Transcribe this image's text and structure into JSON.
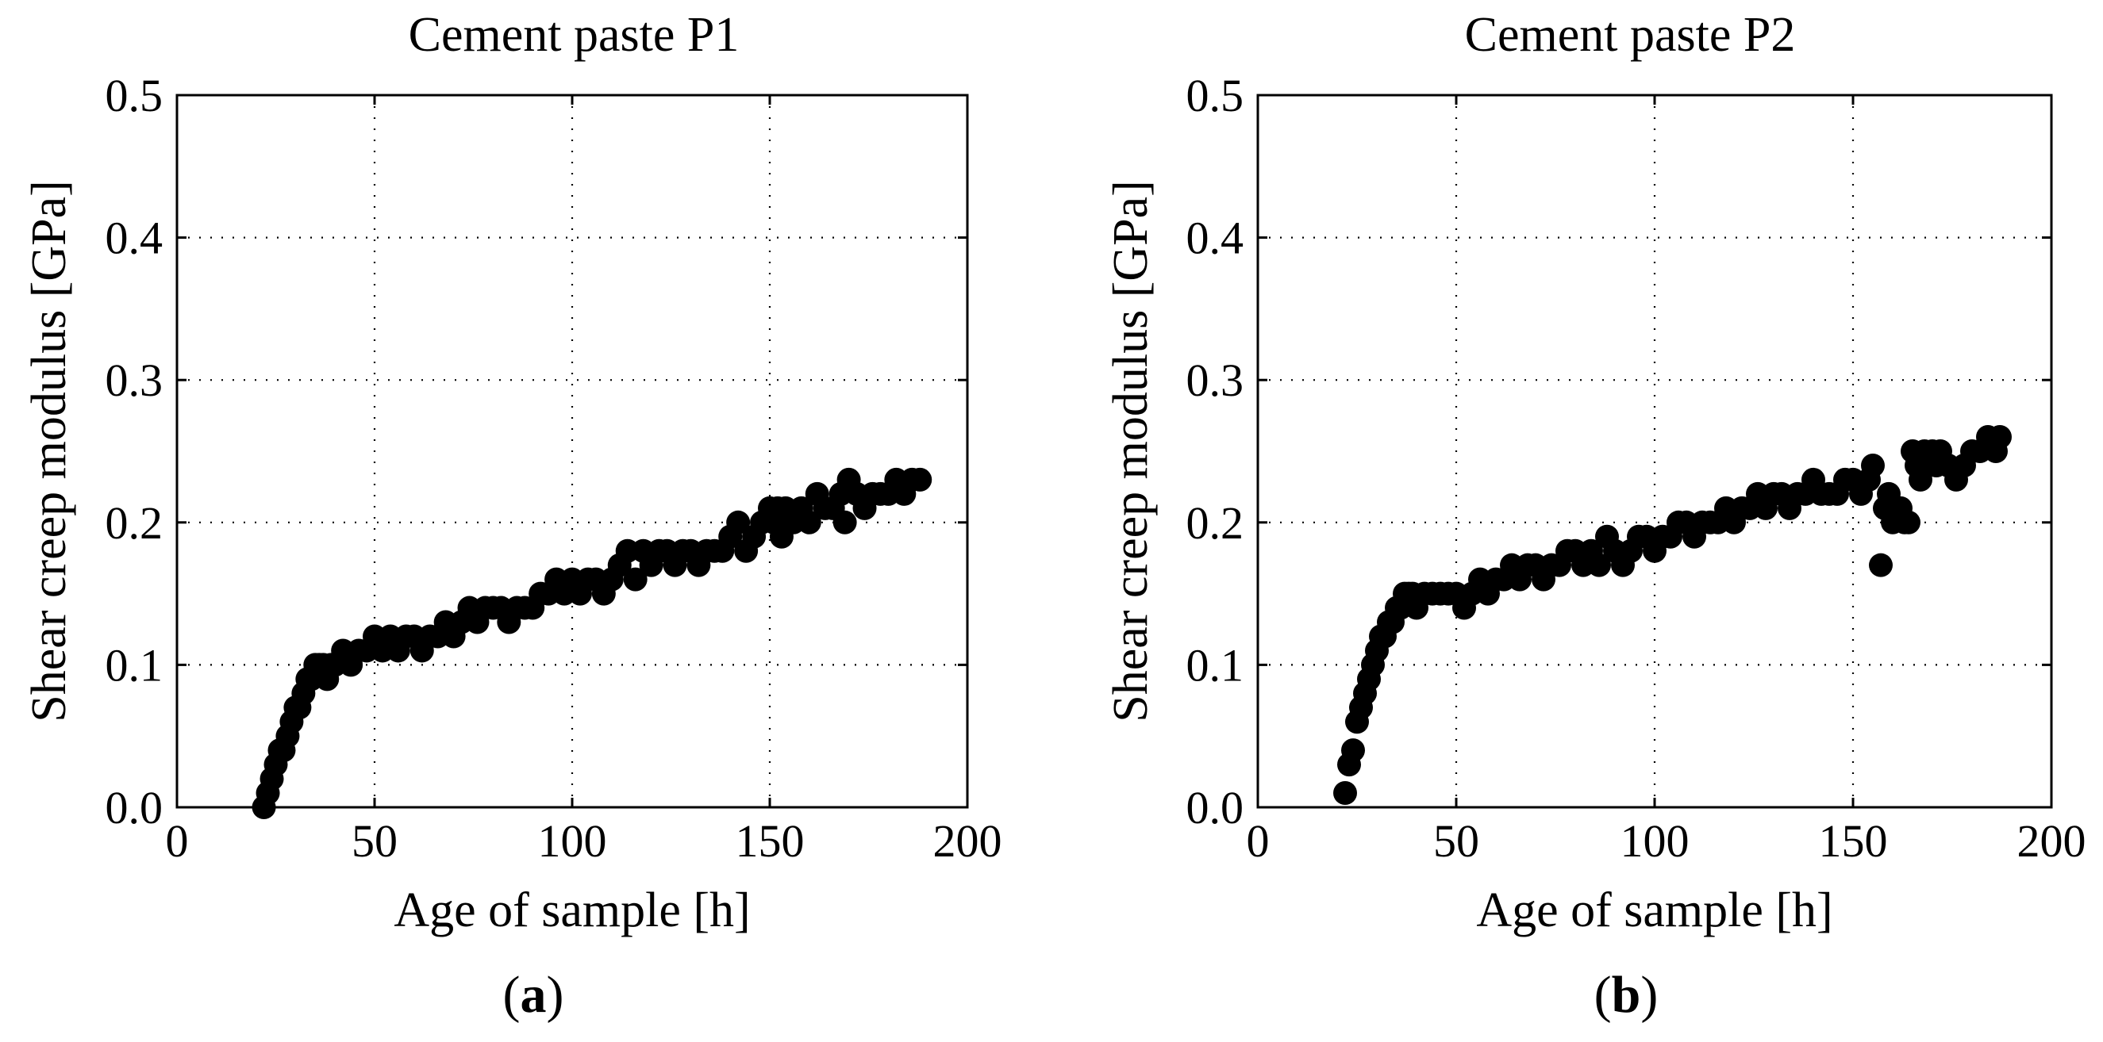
{
  "chart_data": [
    {
      "type": "scatter",
      "title": "Cement paste P1",
      "xlabel": "Age of sample [h]",
      "ylabel": "Shear creep modulus [GPa]",
      "xlim": [
        0,
        200
      ],
      "ylim": [
        0.0,
        0.5
      ],
      "xticks": [
        "0",
        "50",
        "100",
        "150",
        "200"
      ],
      "yticks": [
        "0.0",
        "0.1",
        "0.2",
        "0.3",
        "0.4",
        "0.5"
      ],
      "grid": true,
      "caption_open": "(",
      "caption_letter": "a",
      "caption_close": ")",
      "series": [
        {
          "name": "P1",
          "x": [
            22,
            23,
            24,
            25,
            26,
            27,
            28,
            29,
            30,
            31,
            32,
            33,
            34,
            35,
            36,
            37,
            38,
            39,
            40,
            42,
            44,
            46,
            48,
            50,
            52,
            54,
            56,
            58,
            60,
            62,
            64,
            66,
            68,
            70,
            72,
            74,
            76,
            78,
            80,
            82,
            84,
            86,
            88,
            90,
            92,
            94,
            96,
            98,
            100,
            102,
            104,
            106,
            108,
            110,
            112,
            114,
            116,
            118,
            120,
            122,
            124,
            126,
            128,
            130,
            132,
            134,
            136,
            138,
            140,
            142,
            144,
            146,
            148,
            150,
            151,
            152,
            153,
            154,
            156,
            158,
            160,
            162,
            164,
            166,
            168,
            169,
            170,
            172,
            174,
            176,
            178,
            180,
            182,
            184,
            186,
            188
          ],
          "y": [
            0.0,
            0.01,
            0.02,
            0.03,
            0.04,
            0.04,
            0.05,
            0.06,
            0.07,
            0.07,
            0.08,
            0.09,
            0.09,
            0.1,
            0.1,
            0.1,
            0.09,
            0.1,
            0.1,
            0.11,
            0.1,
            0.11,
            0.11,
            0.12,
            0.11,
            0.12,
            0.11,
            0.12,
            0.12,
            0.11,
            0.12,
            0.12,
            0.13,
            0.12,
            0.13,
            0.14,
            0.13,
            0.14,
            0.14,
            0.14,
            0.13,
            0.14,
            0.14,
            0.14,
            0.15,
            0.15,
            0.16,
            0.15,
            0.16,
            0.15,
            0.16,
            0.16,
            0.15,
            0.16,
            0.17,
            0.18,
            0.16,
            0.18,
            0.17,
            0.18,
            0.18,
            0.17,
            0.18,
            0.18,
            0.17,
            0.18,
            0.18,
            0.18,
            0.19,
            0.2,
            0.18,
            0.19,
            0.2,
            0.21,
            0.2,
            0.21,
            0.19,
            0.21,
            0.2,
            0.21,
            0.2,
            0.22,
            0.21,
            0.21,
            0.22,
            0.2,
            0.23,
            0.22,
            0.21,
            0.22,
            0.22,
            0.22,
            0.23,
            0.22,
            0.23,
            0.23
          ]
        }
      ]
    },
    {
      "type": "scatter",
      "title": "Cement paste P2",
      "xlabel": "Age of sample [h]",
      "ylabel": "Shear creep modulus [GPa]",
      "xlim": [
        0,
        200
      ],
      "ylim": [
        0.0,
        0.5
      ],
      "xticks": [
        "0",
        "50",
        "100",
        "150",
        "200"
      ],
      "yticks": [
        "0.0",
        "0.1",
        "0.2",
        "0.3",
        "0.4",
        "0.5"
      ],
      "grid": true,
      "caption_open": "(",
      "caption_letter": "b",
      "caption_close": ")",
      "series": [
        {
          "name": "P2",
          "x": [
            22,
            23,
            24,
            25,
            26,
            27,
            28,
            29,
            30,
            31,
            32,
            33,
            34,
            35,
            36,
            37,
            38,
            39,
            40,
            42,
            44,
            46,
            48,
            50,
            52,
            54,
            56,
            58,
            60,
            62,
            64,
            66,
            68,
            70,
            72,
            74,
            76,
            78,
            80,
            82,
            84,
            86,
            88,
            90,
            92,
            94,
            96,
            98,
            100,
            102,
            104,
            106,
            108,
            110,
            112,
            114,
            116,
            118,
            120,
            122,
            124,
            126,
            128,
            130,
            132,
            134,
            136,
            138,
            140,
            142,
            144,
            146,
            148,
            150,
            152,
            154,
            155,
            157,
            158,
            159,
            160,
            161,
            162,
            163,
            164,
            165,
            166,
            167,
            168,
            169,
            170,
            171,
            172,
            174,
            176,
            178,
            180,
            182,
            184,
            186,
            187
          ],
          "y": [
            0.01,
            0.03,
            0.04,
            0.06,
            0.07,
            0.08,
            0.09,
            0.1,
            0.11,
            0.12,
            0.12,
            0.13,
            0.13,
            0.14,
            0.14,
            0.15,
            0.15,
            0.15,
            0.14,
            0.15,
            0.15,
            0.15,
            0.15,
            0.15,
            0.14,
            0.15,
            0.16,
            0.15,
            0.16,
            0.16,
            0.17,
            0.16,
            0.17,
            0.17,
            0.16,
            0.17,
            0.17,
            0.18,
            0.18,
            0.17,
            0.18,
            0.17,
            0.19,
            0.18,
            0.17,
            0.18,
            0.19,
            0.19,
            0.18,
            0.19,
            0.19,
            0.2,
            0.2,
            0.19,
            0.2,
            0.2,
            0.2,
            0.21,
            0.2,
            0.21,
            0.21,
            0.22,
            0.21,
            0.22,
            0.22,
            0.21,
            0.22,
            0.22,
            0.23,
            0.22,
            0.22,
            0.22,
            0.23,
            0.23,
            0.22,
            0.23,
            0.24,
            0.17,
            0.21,
            0.22,
            0.2,
            0.21,
            0.21,
            0.2,
            0.2,
            0.25,
            0.24,
            0.23,
            0.25,
            0.24,
            0.25,
            0.24,
            0.25,
            0.24,
            0.23,
            0.24,
            0.25,
            0.25,
            0.26,
            0.25,
            0.26
          ]
        }
      ]
    }
  ]
}
